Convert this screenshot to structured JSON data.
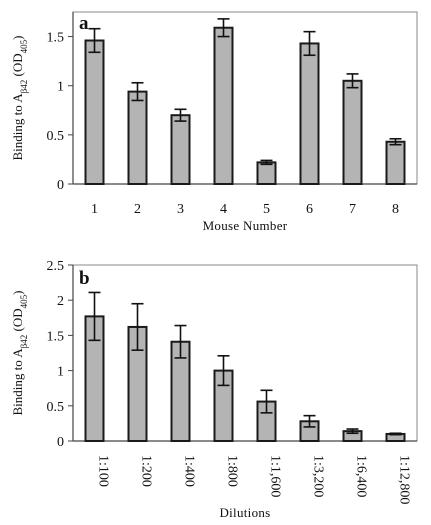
{
  "chart_data": [
    {
      "type": "bar",
      "panel_label": "a",
      "ylabel_parts": [
        "Binding to A",
        "β42",
        " (OD",
        "405",
        ")"
      ],
      "xlabel": "Mouse Number",
      "categories": [
        "1",
        "2",
        "3",
        "4",
        "5",
        "6",
        "7",
        "8"
      ],
      "values": [
        1.46,
        0.94,
        0.7,
        1.59,
        0.22,
        1.43,
        1.05,
        0.43
      ],
      "errors": [
        0.12,
        0.09,
        0.06,
        0.09,
        0.02,
        0.12,
        0.07,
        0.03
      ],
      "ylim": [
        0,
        1.75
      ],
      "yticks": [
        0,
        0.5,
        1,
        1.5
      ],
      "ytick_labels": [
        "0",
        "0.5",
        "1",
        "1.5"
      ],
      "bar_color": "#b4b4b4",
      "grid": false
    },
    {
      "type": "bar",
      "panel_label": "b",
      "ylabel_parts": [
        "Binding to A",
        "β42",
        " (OD",
        "405",
        ")"
      ],
      "xlabel": "Dilutions",
      "categories": [
        "1:100",
        "1:200",
        "1:400",
        "1:800",
        "1:1,600",
        "1:3,200",
        "1:6,400",
        "1:12,800"
      ],
      "values": [
        1.77,
        1.62,
        1.41,
        1.0,
        0.56,
        0.28,
        0.14,
        0.1
      ],
      "errors": [
        0.34,
        0.33,
        0.23,
        0.21,
        0.16,
        0.08,
        0.03,
        0.01
      ],
      "ylim": [
        0,
        2.5
      ],
      "yticks": [
        0,
        0.5,
        1,
        1.5,
        2,
        2.5
      ],
      "ytick_labels": [
        "0",
        "0.5",
        "1",
        "1.5",
        "2",
        "2.5"
      ],
      "bar_color": "#b4b4b4",
      "grid": false
    }
  ]
}
